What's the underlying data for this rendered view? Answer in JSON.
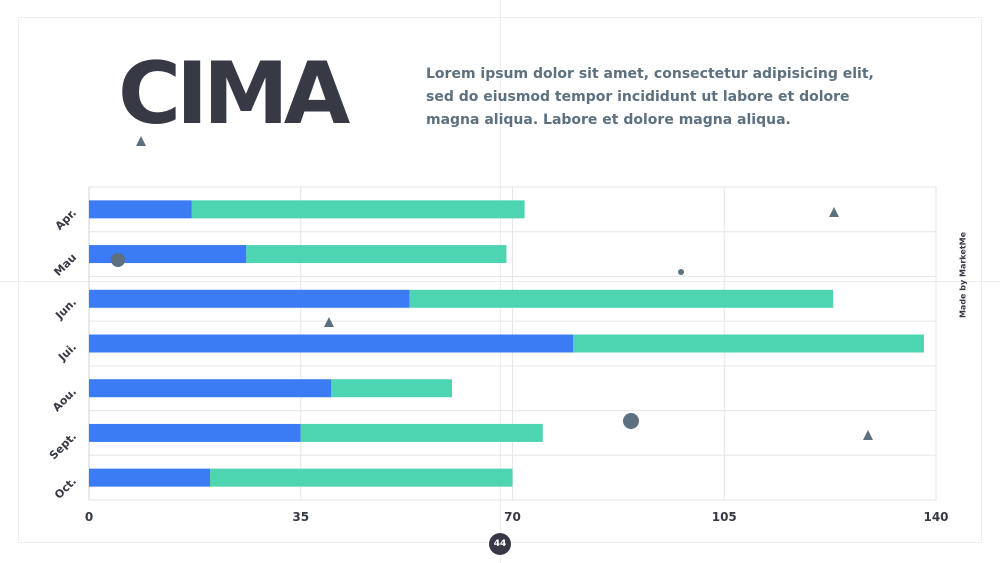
{
  "header": {
    "title": "CIMA",
    "subtitle": "Lorem ipsum dolor sit amet, consectetur adipisicing elit, sed do eiusmod tempor incididunt ut labore et dolore magna aliqua. Labore et dolore magna aliqua."
  },
  "credit": "Made by MarketMe",
  "page_number": "44",
  "colors": {
    "series_1": "#3b7cf5",
    "series_2": "#4dd4b0",
    "text": "#373a45",
    "accent": "#5c7080",
    "grid": "#e6e6e6"
  },
  "chart_data": {
    "type": "bar",
    "orientation": "horizontal",
    "stacked": true,
    "categories": [
      "Apr.",
      "Mau",
      "Jun.",
      "Jui.",
      "Aou.",
      "Sept.",
      "Oct."
    ],
    "series": [
      {
        "values": [
          17,
          26,
          53,
          80,
          40,
          35,
          20
        ]
      },
      {
        "values": [
          55,
          43,
          70,
          58,
          20,
          40,
          50
        ]
      }
    ],
    "xlim": [
      0,
      140
    ],
    "xticks": [
      0,
      35,
      70,
      105,
      140
    ],
    "grid": true,
    "legend": "none"
  }
}
